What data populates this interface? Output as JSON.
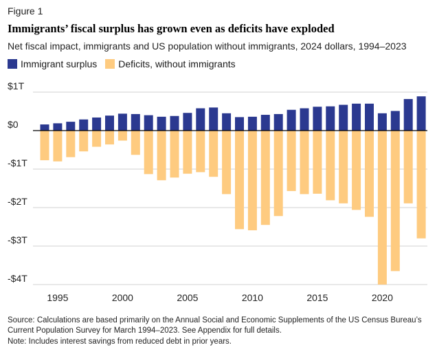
{
  "figure_label": "Figure 1",
  "colors": {
    "surplus": "#2b3990",
    "deficit": "#fecb80",
    "grid": "#d0d0d0",
    "axis": "#000000"
  },
  "chart_data": {
    "type": "bar",
    "title": "Immigrants’ fiscal surplus has grown even as deficits have exploded",
    "subtitle": "Net fiscal impact, immigrants and US population without immigrants, 2024 dollars, 1994–2023",
    "x": [
      1994,
      1995,
      1996,
      1997,
      1998,
      1999,
      2000,
      2001,
      2002,
      2003,
      2004,
      2005,
      2006,
      2007,
      2008,
      2009,
      2010,
      2011,
      2012,
      2013,
      2014,
      2015,
      2016,
      2017,
      2018,
      2019,
      2020,
      2021,
      2022,
      2023
    ],
    "series": [
      {
        "name": "Immigrant surplus",
        "color": "#2b3990",
        "values": [
          0.16,
          0.19,
          0.23,
          0.29,
          0.34,
          0.39,
          0.44,
          0.43,
          0.4,
          0.36,
          0.38,
          0.46,
          0.58,
          0.6,
          0.45,
          0.35,
          0.36,
          0.41,
          0.43,
          0.54,
          0.58,
          0.62,
          0.63,
          0.67,
          0.7,
          0.7,
          0.45,
          0.51,
          0.82,
          0.89
        ]
      },
      {
        "name": "Deficits, without immigrants",
        "color": "#fecb80",
        "values": [
          -0.77,
          -0.8,
          -0.69,
          -0.54,
          -0.42,
          -0.36,
          -0.26,
          -0.63,
          -1.13,
          -1.29,
          -1.22,
          -1.12,
          -1.08,
          -1.2,
          -1.65,
          -2.56,
          -2.59,
          -2.45,
          -2.22,
          -1.57,
          -1.65,
          -1.64,
          -1.81,
          -1.89,
          -2.06,
          -2.24,
          -4.0,
          -3.65,
          -1.89,
          -2.8
        ]
      }
    ],
    "ylim": [
      -4,
      1
    ],
    "yticks": [
      1,
      0,
      -1,
      -2,
      -3,
      -4
    ],
    "ytick_labels": [
      "$1T",
      "$0",
      "-$1T",
      "-$2T",
      "-$3T",
      "-$4T"
    ],
    "xticks": [
      1995,
      2000,
      2005,
      2010,
      2015,
      2020
    ],
    "xtick_labels": [
      "1995",
      "2000",
      "2005",
      "2010",
      "2015",
      "2020"
    ],
    "grid": true,
    "legend_position": "top-left"
  },
  "footer": {
    "source": "Source: Calculations are based primarily on the Annual Social and Economic Supplements of the US Census Bureau’s Current Population Survey for March 1994–2023. See Appendix for full details.",
    "note": "Note: Includes interest savings from reduced debt in prior years."
  }
}
